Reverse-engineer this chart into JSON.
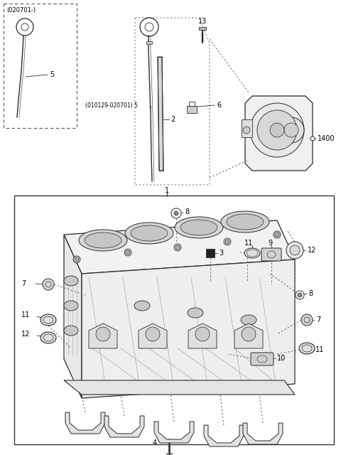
{
  "bg_color": "#ffffff",
  "fig_width": 4.8,
  "fig_height": 6.4,
  "dpi": 100,
  "line_color": "#2a2a2a",
  "text_color": "#000000",
  "fs_label": 7.0,
  "fs_note": 6.0,
  "fs_small": 5.5
}
